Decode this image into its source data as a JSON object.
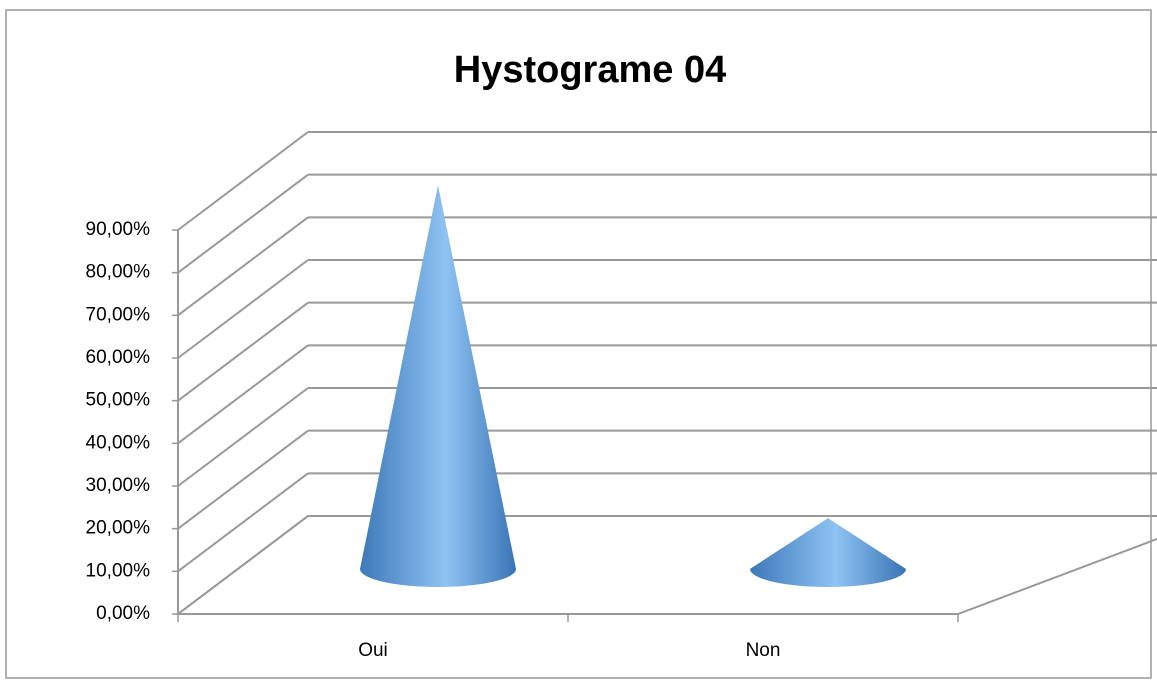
{
  "chart_data": {
    "type": "cone",
    "title": "Hystograme 04",
    "categories": [
      "Oui",
      "Non"
    ],
    "values": [
      89,
      11
    ],
    "color": "#5b9bd5",
    "ylim": [
      0,
      90
    ],
    "yticks": [
      {
        "value": 0,
        "label": "0,00%"
      },
      {
        "value": 10,
        "label": "10,00%"
      },
      {
        "value": 20,
        "label": "20,00%"
      },
      {
        "value": 30,
        "label": "30,00%"
      },
      {
        "value": 40,
        "label": "40,00%"
      },
      {
        "value": 50,
        "label": "50,00%"
      },
      {
        "value": 60,
        "label": "60,00%"
      },
      {
        "value": 70,
        "label": "70,00%"
      },
      {
        "value": 80,
        "label": "80,00%"
      },
      {
        "value": 90,
        "label": "90,00%"
      }
    ],
    "grid": true
  }
}
